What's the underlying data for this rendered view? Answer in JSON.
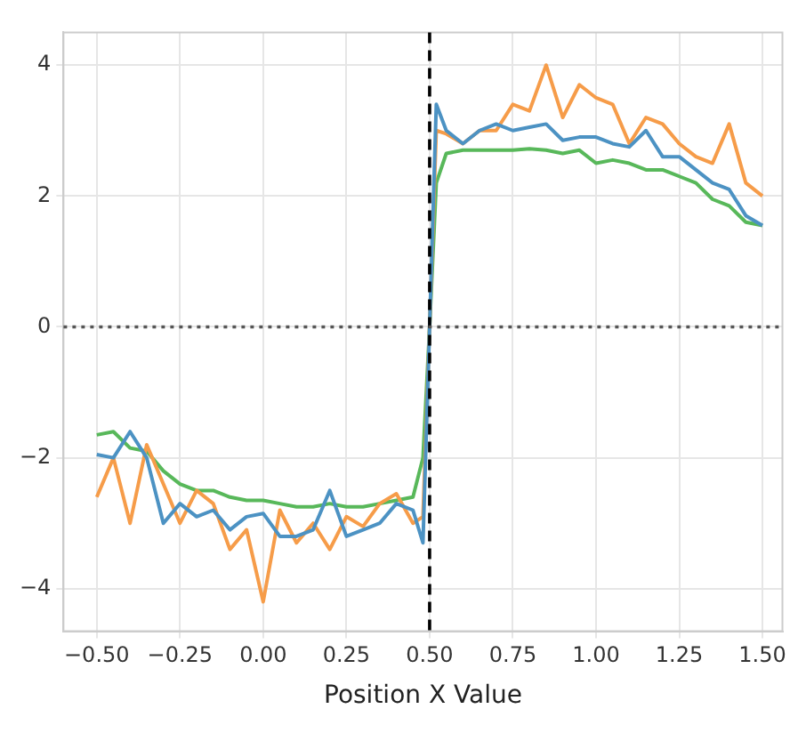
{
  "chart_data": {
    "type": "line",
    "xlabel": "Position X Value",
    "x": [
      -0.5,
      -0.45,
      -0.4,
      -0.35,
      -0.3,
      -0.25,
      -0.2,
      -0.15,
      -0.1,
      -0.05,
      0,
      0.05,
      0.1,
      0.15,
      0.2,
      0.25,
      0.3,
      0.35,
      0.4,
      0.45,
      0.48,
      0.5,
      0.52,
      0.55,
      0.6,
      0.65,
      0.7,
      0.75,
      0.8,
      0.85,
      0.9,
      0.95,
      1.0,
      1.05,
      1.1,
      1.15,
      1.2,
      1.25,
      1.3,
      1.35,
      1.4,
      1.45,
      1.5
    ],
    "series": [
      {
        "color": "#4c92c3",
        "values": [
          -1.95,
          -2.0,
          -1.6,
          -2.0,
          -3.0,
          -2.7,
          -2.9,
          -2.8,
          -3.1,
          -2.9,
          -2.85,
          -3.2,
          -3.2,
          -3.1,
          -2.5,
          -3.2,
          -3.1,
          -3.0,
          -2.7,
          -2.8,
          -3.3,
          0,
          3.4,
          3.0,
          2.8,
          3.0,
          3.1,
          3.0,
          3.05,
          3.1,
          2.85,
          2.9,
          2.9,
          2.8,
          2.75,
          3.0,
          2.6,
          2.6,
          2.4,
          2.2,
          2.1,
          1.7,
          1.55
        ]
      },
      {
        "color": "#f69c49",
        "values": [
          -2.6,
          -2.0,
          -3.0,
          -1.8,
          -2.4,
          -3.0,
          -2.5,
          -2.7,
          -3.4,
          -3.1,
          -4.2,
          -2.8,
          -3.3,
          -3.0,
          -3.4,
          -2.9,
          -3.05,
          -2.7,
          -2.55,
          -3.0,
          -2.9,
          0,
          3.0,
          2.95,
          2.8,
          3.0,
          3.0,
          3.4,
          3.3,
          4.0,
          3.2,
          3.7,
          3.5,
          3.4,
          2.8,
          3.2,
          3.1,
          2.8,
          2.6,
          2.5,
          3.1,
          2.2,
          2.0
        ]
      },
      {
        "color": "#58b85a",
        "values": [
          -1.65,
          -1.6,
          -1.85,
          -1.9,
          -2.2,
          -2.4,
          -2.5,
          -2.5,
          -2.6,
          -2.65,
          -2.65,
          -2.7,
          -2.75,
          -2.75,
          -2.7,
          -2.75,
          -2.75,
          -2.7,
          -2.65,
          -2.6,
          -2.0,
          0,
          2.2,
          2.65,
          2.7,
          2.7,
          2.7,
          2.7,
          2.72,
          2.7,
          2.65,
          2.7,
          2.5,
          2.55,
          2.5,
          2.4,
          2.4,
          2.3,
          2.2,
          1.95,
          1.85,
          1.6,
          1.55
        ]
      }
    ],
    "xlim": [
      -0.6,
      1.56
    ],
    "ylim": [
      -4.65,
      4.5
    ],
    "xticks": [
      {
        "value": -0.5,
        "label": "−0.50"
      },
      {
        "value": -0.25,
        "label": "−0.25"
      },
      {
        "value": 0,
        "label": "0.00"
      },
      {
        "value": 0.25,
        "label": "0.25"
      },
      {
        "value": 0.5,
        "label": "0.50"
      },
      {
        "value": 0.75,
        "label": "0.75"
      },
      {
        "value": 1,
        "label": "1.00"
      },
      {
        "value": 1.25,
        "label": "1.25"
      },
      {
        "value": 1.5,
        "label": "1.50"
      }
    ],
    "yticks": [
      {
        "value": -4,
        "label": "−4"
      },
      {
        "value": -2,
        "label": "−2"
      },
      0,
      2,
      4
    ],
    "ref_lines": [
      {
        "axis": "x",
        "value": 0.5,
        "color": "#000000",
        "line_style": "dashed"
      },
      {
        "axis": "y",
        "value": 0,
        "color": "#555555",
        "line_style": "dotted"
      }
    ],
    "grid": true,
    "line_style": "solid",
    "marker": "none",
    "legend": false
  }
}
